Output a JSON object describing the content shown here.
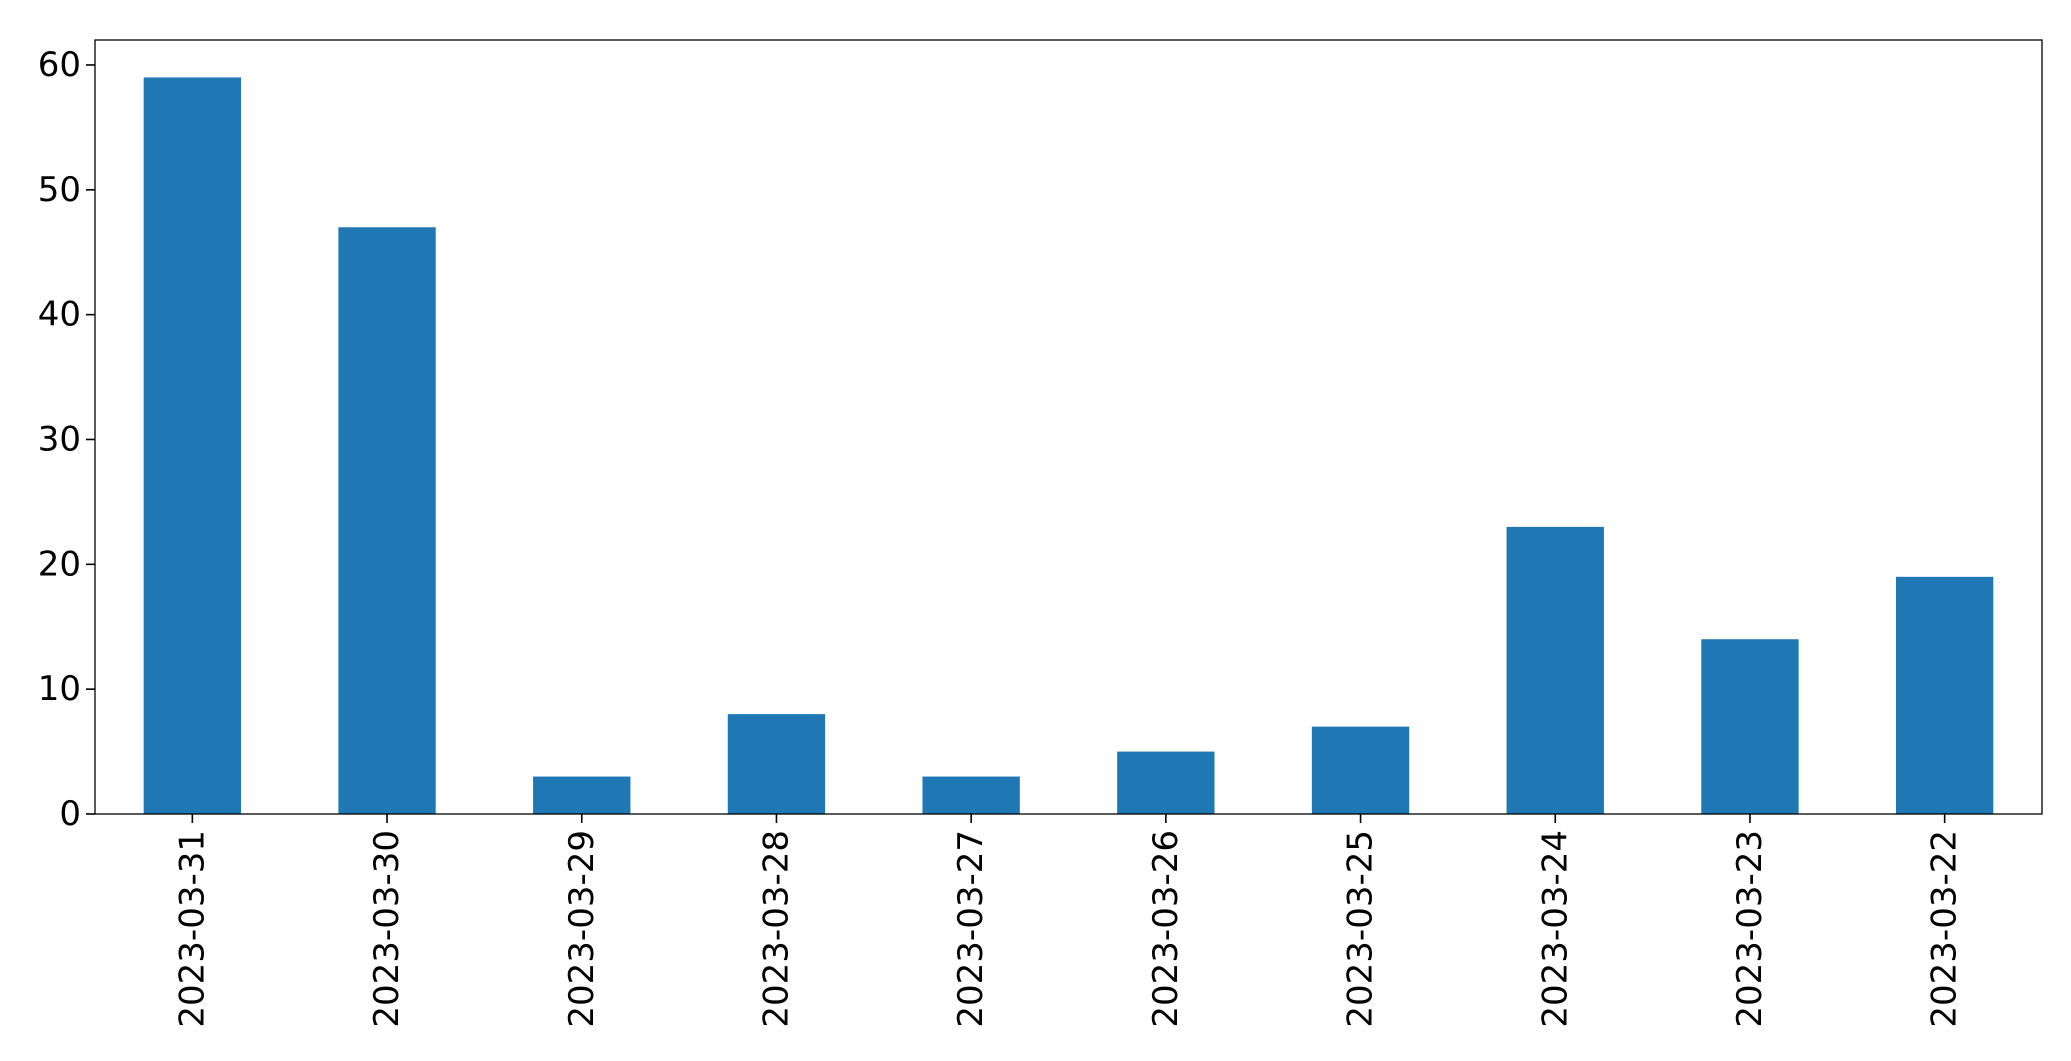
{
  "chart_data": {
    "type": "bar",
    "title": "",
    "xlabel": "",
    "ylabel": "",
    "categories": [
      "2023-03-31",
      "2023-03-30",
      "2023-03-29",
      "2023-03-28",
      "2023-03-27",
      "2023-03-26",
      "2023-03-25",
      "2023-03-24",
      "2023-03-23",
      "2023-03-22"
    ],
    "values": [
      59,
      47,
      3,
      8,
      3,
      5,
      7,
      23,
      14,
      19
    ],
    "ylim": [
      0,
      62
    ],
    "yticks": [
      0,
      10,
      20,
      30,
      40,
      50,
      60
    ],
    "grid": false,
    "legend": "none",
    "bar_color": "#1f77b4"
  }
}
